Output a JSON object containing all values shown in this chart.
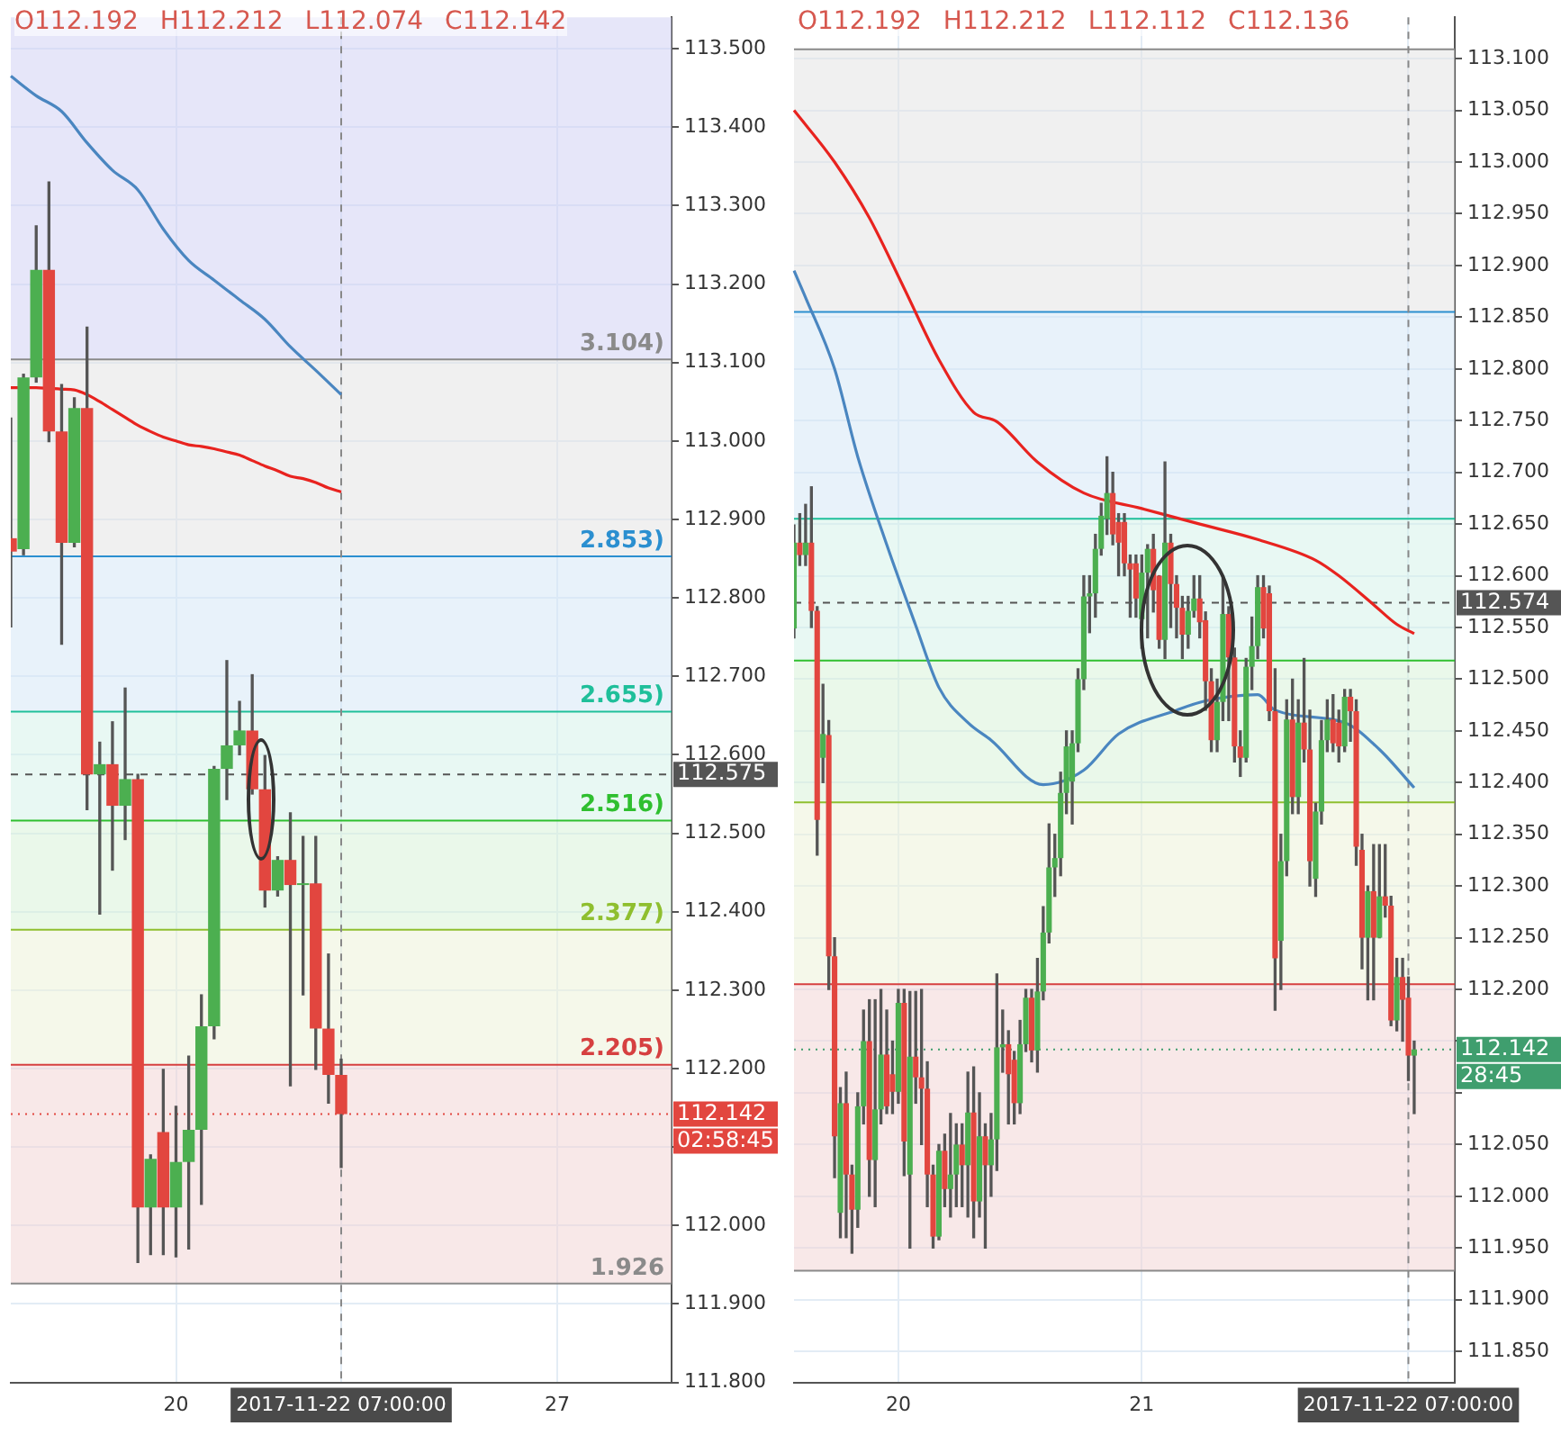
{
  "chart_data": [
    {
      "type": "candlestick",
      "grid": true,
      "annotations": [
        "O112.192",
        "H112.212",
        "L112.074",
        "C112.142",
        "02:58:45",
        {
          "text": "3.104)",
          "y": 113.104
        },
        {
          "text": "2.853)",
          "y": 112.853
        },
        {
          "text": "2.655)",
          "y": 112.655
        },
        {
          "text": "2.516)",
          "y": 112.516
        },
        {
          "text": "2.377)",
          "y": 112.377
        },
        {
          "text": "2.205)",
          "y": 112.205
        },
        {
          "text": "1.926",
          "y": 111.926
        }
      ],
      "categories": [
        null,
        null,
        null,
        null,
        null,
        null,
        null,
        null,
        null,
        null,
        null,
        null,
        null,
        "20",
        null,
        null,
        null,
        null,
        null,
        null,
        null,
        null,
        null,
        null,
        null,
        null,
        "2017-11-22 07:00:00",
        null,
        null,
        null,
        null,
        null,
        null,
        null,
        null,
        null,
        null,
        null,
        null,
        null,
        null,
        null,
        null,
        "27",
        null,
        null,
        null,
        null,
        null,
        null,
        null,
        null,
        null
      ],
      "ohlc": [
        [
          112.876,
          113.029,
          112.763,
          112.859
        ],
        [
          112.862,
          113.085,
          112.855,
          113.081
        ],
        [
          113.081,
          113.274,
          113.075,
          113.218
        ],
        [
          113.218,
          113.33,
          112.999,
          113.012
        ],
        [
          113.012,
          113.072,
          112.741,
          112.87
        ],
        [
          112.87,
          113.055,
          112.865,
          113.042
        ],
        [
          113.042,
          113.145,
          112.53,
          112.575
        ],
        [
          112.575,
          112.616,
          112.397,
          112.588
        ],
        [
          112.588,
          112.642,
          112.453,
          112.535
        ],
        [
          112.535,
          112.685,
          112.492,
          112.569
        ],
        [
          112.569,
          112.575,
          111.953,
          112.023
        ],
        [
          112.023,
          112.09,
          111.963,
          112.085
        ],
        [
          112.119,
          112.199,
          111.963,
          112.023
        ],
        [
          112.023,
          112.152,
          111.96,
          112.081
        ],
        [
          112.081,
          112.216,
          111.97,
          112.122
        ],
        [
          112.122,
          112.294,
          112.027,
          112.254
        ],
        [
          112.254,
          112.585,
          112.238,
          112.582
        ],
        [
          112.582,
          112.72,
          112.543,
          112.612
        ],
        [
          112.612,
          112.668,
          112.6,
          112.631
        ],
        [
          112.631,
          112.702,
          112.55,
          112.556
        ],
        [
          112.556,
          112.599,
          112.406,
          112.427
        ],
        [
          112.427,
          112.47,
          112.42,
          112.466
        ],
        [
          112.466,
          112.526,
          112.178,
          112.434
        ],
        [
          112.434,
          112.496,
          112.294,
          112.436
        ],
        [
          112.436,
          112.496,
          112.199,
          112.251
        ],
        [
          112.251,
          112.346,
          112.156,
          112.192
        ],
        [
          112.192,
          112.212,
          112.074,
          112.142
        ],
        null,
        null,
        null,
        null,
        null,
        null,
        null,
        null,
        null,
        null,
        null,
        null,
        null,
        null,
        null,
        null,
        null,
        null,
        null,
        null,
        null,
        null,
        null,
        null,
        null,
        null
      ],
      "series": [
        {
          "type": "line",
          "color": "#e8231f",
          "values": [
            113.068,
            113.068,
            113.068,
            113.067,
            113.066,
            113.065,
            113.059,
            113.05,
            113.04,
            113.03,
            113.02,
            113.012,
            113.005,
            113.0,
            112.995,
            112.993,
            112.99,
            112.986,
            112.982,
            112.975,
            112.968,
            112.962,
            112.955,
            112.952,
            112.947,
            112.94,
            112.935,
            null,
            null,
            null,
            null,
            null,
            null,
            null,
            null,
            null,
            null,
            null,
            null,
            null,
            null,
            null,
            null,
            null,
            null,
            null,
            null,
            null,
            null,
            null,
            null,
            null,
            null
          ]
        },
        {
          "type": "line",
          "color": "#4a86c0",
          "values": [
            113.465,
            null,
            113.44,
            null,
            113.42,
            null,
            113.38,
            null,
            113.345,
            null,
            113.32,
            null,
            113.27,
            null,
            113.23,
            null,
            113.205,
            null,
            113.18,
            null,
            113.155,
            null,
            113.12,
            null,
            113.09,
            null,
            113.059,
            null,
            null,
            null,
            null,
            null,
            null,
            null,
            null,
            null,
            null,
            null,
            null,
            null,
            null,
            null,
            null,
            null,
            null,
            null,
            null,
            null,
            null,
            null,
            null,
            null,
            null
          ]
        }
      ],
      "ylim": [
        111.8,
        113.54
      ],
      "yticks": [
        {
          "value": 111.8,
          "label": "111.800"
        },
        {
          "value": 111.9,
          "label": "111.900"
        },
        {
          "value": 112.0,
          "label": "112.000"
        },
        {
          "value": 112.1,
          "label": null
        },
        {
          "value": 112.2,
          "label": "112.200"
        },
        {
          "value": 112.3,
          "label": "112.300"
        },
        {
          "value": 112.4,
          "label": "112.400"
        },
        {
          "value": 112.5,
          "label": "112.500"
        },
        {
          "value": 112.6,
          "label": "112.600"
        },
        {
          "value": 112.7,
          "label": "112.700"
        },
        {
          "value": 112.8,
          "label": "112.800"
        },
        {
          "value": 112.9,
          "label": "112.900"
        },
        {
          "value": 113.0,
          "label": "113.000"
        },
        {
          "value": 113.1,
          "label": "113.100"
        },
        {
          "value": 113.2,
          "label": "113.200"
        },
        {
          "value": 113.3,
          "label": "113.300"
        },
        {
          "value": 113.4,
          "label": "113.400"
        },
        {
          "value": 113.5,
          "label": "113.500"
        }
      ],
      "bands": [
        {
          "axis": "y",
          "from": 113.104,
          "to": 113.54,
          "color": "#d2d2f4"
        },
        {
          "axis": "y",
          "from": 112.853,
          "to": 113.104,
          "color": "#e3e3e3"
        },
        {
          "axis": "y",
          "from": 112.655,
          "to": 112.853,
          "color": "#d6e8f6"
        },
        {
          "axis": "y",
          "from": 112.516,
          "to": 112.655,
          "color": "#d5f3ea"
        },
        {
          "axis": "y",
          "from": 112.377,
          "to": 112.516,
          "color": "#d8f3d8"
        },
        {
          "axis": "y",
          "from": 112.205,
          "to": 112.377,
          "color": "#edf3d8"
        },
        {
          "axis": "y",
          "from": 111.926,
          "to": 112.205,
          "color": "#f3d5d5"
        }
      ],
      "ref_lines": [
        {
          "axis": "y",
          "value": 113.104,
          "color": "#8a8a8a"
        },
        {
          "axis": "y",
          "value": 112.853,
          "color": "#2b8fd0"
        },
        {
          "axis": "y",
          "value": 112.655,
          "color": "#1fbf9a"
        },
        {
          "axis": "y",
          "value": 112.516,
          "color": "#2fbf2f"
        },
        {
          "axis": "y",
          "value": 112.377,
          "color": "#8fbf2f"
        },
        {
          "axis": "y",
          "value": 112.205,
          "color": "#d64040"
        },
        {
          "axis": "y",
          "value": 111.926,
          "color": "#8a8a8a"
        },
        {
          "axis": "y",
          "value": 112.575,
          "label": "112.575",
          "color": "#555555",
          "line_style": "dashed"
        },
        {
          "axis": "y",
          "value": 112.142,
          "label": "112.142",
          "color": "#e2463f",
          "line_style": "dotted"
        },
        {
          "axis": "x",
          "value": "2017-11-22 07:00:00",
          "color": "#888888",
          "line_style": "dashed"
        }
      ]
    },
    {
      "type": "candlestick",
      "grid": true,
      "annotations": [
        "O112.192",
        "H112.212",
        "L112.112",
        "C112.136",
        "28:45"
      ],
      "categories": [
        null,
        null,
        null,
        null,
        null,
        null,
        null,
        null,
        null,
        null,
        null,
        null,
        null,
        null,
        null,
        null,
        null,
        null,
        "20",
        null,
        null,
        null,
        null,
        null,
        null,
        null,
        null,
        null,
        null,
        null,
        null,
        null,
        null,
        null,
        null,
        null,
        null,
        null,
        null,
        null,
        null,
        null,
        null,
        null,
        null,
        null,
        null,
        null,
        null,
        null,
        null,
        null,
        null,
        null,
        null,
        null,
        null,
        null,
        null,
        null,
        "21",
        null,
        null,
        null,
        null,
        null,
        null,
        null,
        null,
        null,
        null,
        null,
        null,
        null,
        null,
        null,
        null,
        null,
        null,
        null,
        null,
        null,
        null,
        null,
        null,
        null,
        null,
        null,
        null,
        null,
        null,
        null,
        null,
        null,
        null,
        null,
        null,
        null,
        null,
        null,
        null,
        null,
        null,
        null,
        null,
        null,
        "2017-11-22 07:00:00",
        null,
        null,
        null,
        null,
        null,
        null,
        null,
        null
      ],
      "ohlc": [
        [
          112.549,
          112.649,
          112.54,
          112.632
        ],
        [
          112.632,
          112.66,
          112.61,
          112.62
        ],
        [
          112.62,
          112.669,
          112.61,
          112.632
        ],
        [
          112.632,
          112.686,
          112.55,
          112.566
        ],
        [
          112.566,
          112.57,
          112.33,
          112.364
        ],
        [
          112.424,
          112.495,
          112.4,
          112.447
        ],
        [
          112.446,
          112.46,
          112.2,
          112.232
        ],
        [
          112.232,
          112.25,
          112.018,
          112.058
        ],
        [
          111.984,
          112.105,
          111.96,
          112.09
        ],
        [
          112.09,
          112.12,
          111.96,
          112.021
        ],
        [
          112.021,
          112.03,
          111.945,
          111.987
        ],
        [
          111.987,
          112.1,
          111.97,
          112.087
        ],
        [
          112.087,
          112.18,
          112.07,
          112.15
        ],
        [
          112.15,
          112.19,
          112.0,
          112.035
        ],
        [
          112.035,
          112.19,
          111.99,
          112.084
        ],
        [
          112.084,
          112.2,
          112.07,
          112.137
        ],
        [
          112.137,
          112.18,
          112.08,
          112.087
        ],
        [
          112.118,
          112.15,
          112.08,
          112.101
        ],
        [
          112.101,
          112.2,
          112.09,
          112.187
        ],
        [
          112.187,
          112.2,
          112.02,
          112.053
        ],
        [
          112.021,
          112.198,
          111.95,
          112.135
        ],
        [
          112.135,
          112.198,
          112.09,
          112.115
        ],
        [
          112.115,
          112.2,
          112.05,
          112.104
        ],
        [
          112.104,
          112.13,
          111.99,
          112.021
        ],
        [
          112.021,
          112.03,
          111.95,
          111.961
        ],
        [
          111.961,
          112.05,
          111.958,
          112.044
        ],
        [
          112.044,
          112.06,
          111.99,
          112.007
        ],
        [
          112.007,
          112.08,
          111.98,
          112.021
        ],
        [
          112.021,
          112.07,
          111.99,
          112.05
        ],
        [
          112.05,
          112.07,
          111.99,
          112.03
        ],
        [
          112.03,
          112.12,
          111.98,
          112.081
        ],
        [
          112.081,
          112.125,
          111.96,
          111.995
        ],
        [
          111.995,
          112.1,
          111.98,
          112.058
        ],
        [
          112.058,
          112.07,
          111.95,
          112.03
        ],
        [
          112.03,
          112.08,
          112.0,
          112.055
        ],
        [
          112.055,
          112.215,
          112.025,
          112.144
        ],
        [
          112.144,
          112.18,
          112.12,
          112.147
        ],
        [
          112.147,
          112.16,
          112.07,
          112.118
        ],
        [
          112.132,
          112.14,
          112.07,
          112.09
        ],
        [
          112.09,
          112.17,
          112.08,
          112.147
        ],
        [
          112.147,
          112.2,
          112.14,
          112.192
        ],
        [
          112.192,
          112.2,
          112.13,
          112.141
        ],
        [
          112.141,
          112.23,
          112.12,
          112.198
        ],
        [
          112.198,
          112.28,
          112.19,
          112.255
        ],
        [
          112.255,
          112.36,
          112.245,
          112.318
        ],
        [
          112.318,
          112.35,
          112.29,
          112.327
        ],
        [
          112.327,
          112.41,
          112.31,
          112.39
        ],
        [
          112.39,
          112.45,
          112.37,
          112.435
        ],
        [
          112.401,
          112.45,
          112.36,
          112.438
        ],
        [
          112.438,
          112.51,
          112.43,
          112.5
        ],
        [
          112.5,
          112.6,
          112.49,
          112.58
        ],
        [
          112.58,
          112.6,
          112.545,
          112.583
        ],
        [
          112.583,
          112.64,
          112.56,
          112.626
        ],
        [
          112.626,
          112.67,
          112.62,
          112.658
        ],
        [
          112.655,
          112.715,
          112.64,
          112.68
        ],
        [
          112.68,
          112.7,
          112.63,
          112.64
        ],
        [
          112.652,
          112.66,
          112.6,
          112.632
        ],
        [
          112.652,
          112.66,
          112.6,
          112.612
        ],
        [
          112.612,
          112.62,
          112.56,
          112.606
        ],
        [
          112.612,
          112.62,
          112.56,
          112.578
        ],
        [
          112.558,
          112.62,
          112.53,
          112.603
        ],
        [
          112.603,
          112.63,
          112.54,
          112.626
        ],
        [
          112.626,
          112.64,
          112.565,
          112.586
        ],
        [
          112.6,
          112.6,
          112.53,
          112.538
        ],
        [
          112.538,
          112.71,
          112.52,
          112.632
        ],
        [
          112.632,
          112.64,
          112.55,
          112.592
        ],
        [
          112.592,
          112.6,
          112.54,
          112.569
        ],
        [
          112.569,
          112.58,
          112.52,
          112.543
        ],
        [
          112.543,
          112.58,
          112.53,
          112.566
        ],
        [
          112.566,
          112.6,
          112.56,
          112.578
        ],
        [
          112.578,
          112.6,
          112.54,
          112.555
        ],
        [
          112.557,
          112.565,
          112.47,
          112.498
        ],
        [
          112.498,
          112.51,
          112.43,
          112.441
        ],
        [
          112.441,
          112.5,
          112.43,
          112.478
        ],
        [
          112.478,
          112.6,
          112.46,
          112.563
        ],
        [
          112.563,
          112.57,
          112.46,
          112.521
        ],
        [
          112.521,
          112.53,
          112.42,
          112.435
        ],
        [
          112.435,
          112.45,
          112.406,
          112.424
        ],
        [
          112.424,
          112.52,
          112.42,
          112.512
        ],
        [
          112.512,
          112.56,
          112.49,
          112.532
        ],
        [
          112.532,
          112.6,
          112.52,
          112.589
        ],
        [
          112.589,
          112.6,
          112.54,
          112.549
        ],
        [
          112.583,
          112.59,
          112.46,
          112.469
        ],
        [
          112.469,
          112.51,
          112.18,
          112.23
        ],
        [
          112.247,
          112.35,
          112.2,
          112.324
        ],
        [
          112.324,
          112.48,
          112.31,
          112.461
        ],
        [
          112.461,
          112.5,
          112.37,
          112.386
        ],
        [
          112.386,
          112.48,
          112.37,
          112.458
        ],
        [
          112.458,
          112.52,
          112.42,
          112.432
        ],
        [
          112.432,
          112.47,
          112.3,
          112.324
        ],
        [
          112.307,
          112.38,
          112.29,
          112.372
        ],
        [
          112.372,
          112.46,
          112.36,
          112.441
        ],
        [
          112.441,
          112.48,
          112.43,
          112.461
        ],
        [
          112.461,
          112.485,
          112.43,
          112.438
        ],
        [
          112.458,
          112.47,
          112.42,
          112.435
        ],
        [
          112.435,
          112.49,
          112.43,
          112.483
        ],
        [
          112.483,
          112.49,
          112.44,
          112.469
        ],
        [
          112.469,
          112.48,
          112.32,
          112.338
        ],
        [
          112.335,
          112.35,
          112.22,
          112.25
        ],
        [
          112.25,
          112.3,
          112.19,
          112.295
        ],
        [
          112.295,
          112.34,
          112.19,
          112.25
        ],
        [
          112.25,
          112.34,
          112.25,
          112.29
        ],
        [
          112.29,
          112.34,
          112.27,
          112.281
        ],
        [
          112.281,
          112.29,
          112.165,
          112.17
        ],
        [
          112.17,
          112.23,
          112.16,
          112.212
        ],
        [
          112.212,
          112.23,
          112.15,
          112.19
        ],
        [
          112.192,
          112.212,
          112.112,
          112.136
        ],
        [
          112.136,
          112.15,
          112.08,
          112.142
        ],
        null,
        null,
        null,
        null,
        null,
        null,
        null
      ],
      "series": [
        {
          "type": "line",
          "color": "#e8231f",
          "values": [
            113.05,
            null,
            null,
            null,
            null,
            null,
            null,
            113.0,
            null,
            null,
            null,
            null,
            null,
            112.946,
            null,
            null,
            null,
            null,
            null,
            112.878,
            null,
            null,
            null,
            null,
            null,
            112.809,
            null,
            null,
            null,
            null,
            null,
            112.758,
            null,
            null,
            null,
            112.749,
            null,
            null,
            null,
            null,
            null,
            null,
            112.71,
            null,
            null,
            null,
            null,
            null,
            null,
            null,
            112.68,
            null,
            null,
            null,
            null,
            null,
            null,
            null,
            null,
            null,
            112.665,
            null,
            null,
            null,
            null,
            null,
            null,
            null,
            null,
            null,
            112.65,
            null,
            null,
            null,
            null,
            null,
            null,
            null,
            null,
            null,
            112.635,
            null,
            null,
            null,
            null,
            null,
            null,
            null,
            null,
            null,
            112.615,
            null,
            null,
            null,
            112.6,
            null,
            null,
            null,
            null,
            null,
            112.572,
            null,
            null,
            null,
            112.553,
            null,
            null,
            112.544,
            null,
            null,
            null,
            null,
            null,
            null,
            null
          ]
        },
        {
          "type": "line",
          "color": "#4a86c0",
          "values": [
            112.895,
            null,
            112.869,
            null,
            null,
            null,
            null,
            112.8,
            null,
            null,
            null,
            112.715,
            null,
            null,
            null,
            null,
            112.63,
            null,
            null,
            null,
            null,
            112.552,
            null,
            null,
            null,
            112.492,
            null,
            null,
            null,
            null,
            112.458,
            null,
            null,
            null,
            112.441,
            null,
            null,
            null,
            null,
            null,
            null,
            null,
            null,
            112.398,
            null,
            null,
            null,
            null,
            null,
            null,
            112.412,
            null,
            null,
            null,
            null,
            null,
            112.447,
            null,
            null,
            null,
            null,
            null,
            null,
            null,
            null,
            null,
            112.47,
            null,
            null,
            null,
            null,
            112.479,
            null,
            null,
            null,
            null,
            null,
            null,
            null,
            null,
            112.485,
            null,
            null,
            112.47,
            null,
            null,
            null,
            null,
            null,
            null,
            null,
            null,
            null,
            null,
            null,
            112.458,
            null,
            null,
            null,
            null,
            null,
            112.432,
            null,
            null,
            null,
            null,
            null,
            112.395,
            null,
            null,
            null,
            null,
            null,
            null,
            null
          ]
        }
      ],
      "ylim": [
        111.82,
        113.14
      ],
      "yticks": [
        {
          "value": 111.85,
          "label": "111.850"
        },
        {
          "value": 111.9,
          "label": "111.900"
        },
        {
          "value": 111.95,
          "label": "111.950"
        },
        {
          "value": 112.0,
          "label": "112.000"
        },
        {
          "value": 112.05,
          "label": "112.050"
        },
        {
          "value": 112.1,
          "label": null
        },
        {
          "value": 112.15,
          "label": null
        },
        {
          "value": 112.2,
          "label": "112.200"
        },
        {
          "value": 112.25,
          "label": "112.250"
        },
        {
          "value": 112.3,
          "label": "112.300"
        },
        {
          "value": 112.35,
          "label": "112.350"
        },
        {
          "value": 112.4,
          "label": "112.400"
        },
        {
          "value": 112.45,
          "label": "112.450"
        },
        {
          "value": 112.5,
          "label": "112.500"
        },
        {
          "value": 112.55,
          "label": "112.550"
        },
        {
          "value": 112.6,
          "label": "112.600"
        },
        {
          "value": 112.65,
          "label": "112.650"
        },
        {
          "value": 112.7,
          "label": "112.700"
        },
        {
          "value": 112.75,
          "label": "112.750"
        },
        {
          "value": 112.8,
          "label": "112.800"
        },
        {
          "value": 112.85,
          "label": "112.850"
        },
        {
          "value": 112.9,
          "label": "112.900"
        },
        {
          "value": 112.95,
          "label": "112.950"
        },
        {
          "value": 113.0,
          "label": "113.000"
        },
        {
          "value": 113.05,
          "label": "113.050"
        },
        {
          "value": 113.1,
          "label": "113.100"
        }
      ],
      "bands": [
        {
          "axis": "y",
          "from": 112.855,
          "to": 113.109,
          "color": "#e3e3e3"
        },
        {
          "axis": "y",
          "from": 112.655,
          "to": 112.855,
          "color": "#d6e8f6"
        },
        {
          "axis": "y",
          "from": 112.518,
          "to": 112.655,
          "color": "#d5f3ea"
        },
        {
          "axis": "y",
          "from": 112.381,
          "to": 112.518,
          "color": "#d8f3d8"
        },
        {
          "axis": "y",
          "from": 112.205,
          "to": 112.381,
          "color": "#edf3d8"
        },
        {
          "axis": "y",
          "from": 111.928,
          "to": 112.205,
          "color": "#f3d5d5"
        }
      ],
      "ref_lines": [
        {
          "axis": "y",
          "value": 113.109,
          "color": "#8a8a8a"
        },
        {
          "axis": "y",
          "value": 112.855,
          "color": "#2b8fd0"
        },
        {
          "axis": "y",
          "value": 112.655,
          "color": "#1fbf9a"
        },
        {
          "axis": "y",
          "value": 112.518,
          "color": "#2fbf2f"
        },
        {
          "axis": "y",
          "value": 112.381,
          "color": "#8fbf2f"
        },
        {
          "axis": "y",
          "value": 112.205,
          "color": "#d64040"
        },
        {
          "axis": "y",
          "value": 111.928,
          "color": "#8a8a8a"
        },
        {
          "axis": "y",
          "value": 112.574,
          "label": "112.574",
          "color": "#555555",
          "line_style": "dashed"
        },
        {
          "axis": "y",
          "value": 112.142,
          "label": "112.142",
          "color": "#3f9e6e",
          "line_style": "dotted"
        },
        {
          "axis": "x",
          "value": "2017-11-22 07:00:00",
          "color": "#888888",
          "line_style": "dashed"
        }
      ]
    }
  ]
}
